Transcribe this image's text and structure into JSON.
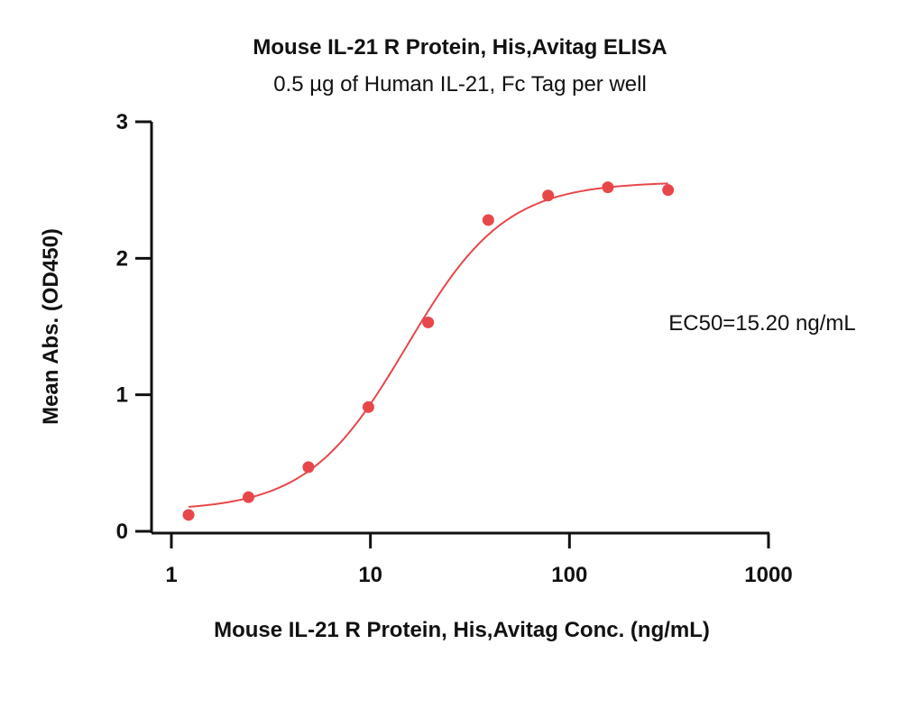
{
  "chart_data": {
    "type": "scatter",
    "title": "Mouse IL-21 R Protein, His,Avitag ELISA",
    "subtitle": "0.5 µg of Human IL-21, Fc Tag per well",
    "xlabel": "Mouse IL-21 R Protein, His,Avitag Conc. (ng/mL)",
    "ylabel": "Mean Abs. (OD450)",
    "x_scale": "log",
    "xlim": [
      1,
      1000
    ],
    "ylim": [
      0,
      3
    ],
    "x_ticks": [
      1,
      10,
      100,
      1000
    ],
    "x_tick_labels": [
      "1",
      "10",
      "100",
      "1000"
    ],
    "y_ticks": [
      0,
      1,
      2,
      3
    ],
    "y_tick_labels": [
      "0",
      "1",
      "2",
      "3"
    ],
    "grid": false,
    "annotation": "EC50=15.20 ng/mL",
    "color": "#e8474a",
    "points": [
      {
        "x": 1.22,
        "y": 0.12
      },
      {
        "x": 2.44,
        "y": 0.25
      },
      {
        "x": 4.88,
        "y": 0.47
      },
      {
        "x": 9.77,
        "y": 0.91
      },
      {
        "x": 19.5,
        "y": 1.53
      },
      {
        "x": 39.1,
        "y": 2.28
      },
      {
        "x": 78.1,
        "y": 2.46
      },
      {
        "x": 156,
        "y": 2.52
      },
      {
        "x": 313,
        "y": 2.5
      }
    ],
    "fit": {
      "model": "4PL",
      "bottom": 0.15,
      "top": 2.56,
      "ec50": 15.2,
      "hill": 1.75,
      "x_range": [
        1.22,
        313
      ]
    }
  }
}
